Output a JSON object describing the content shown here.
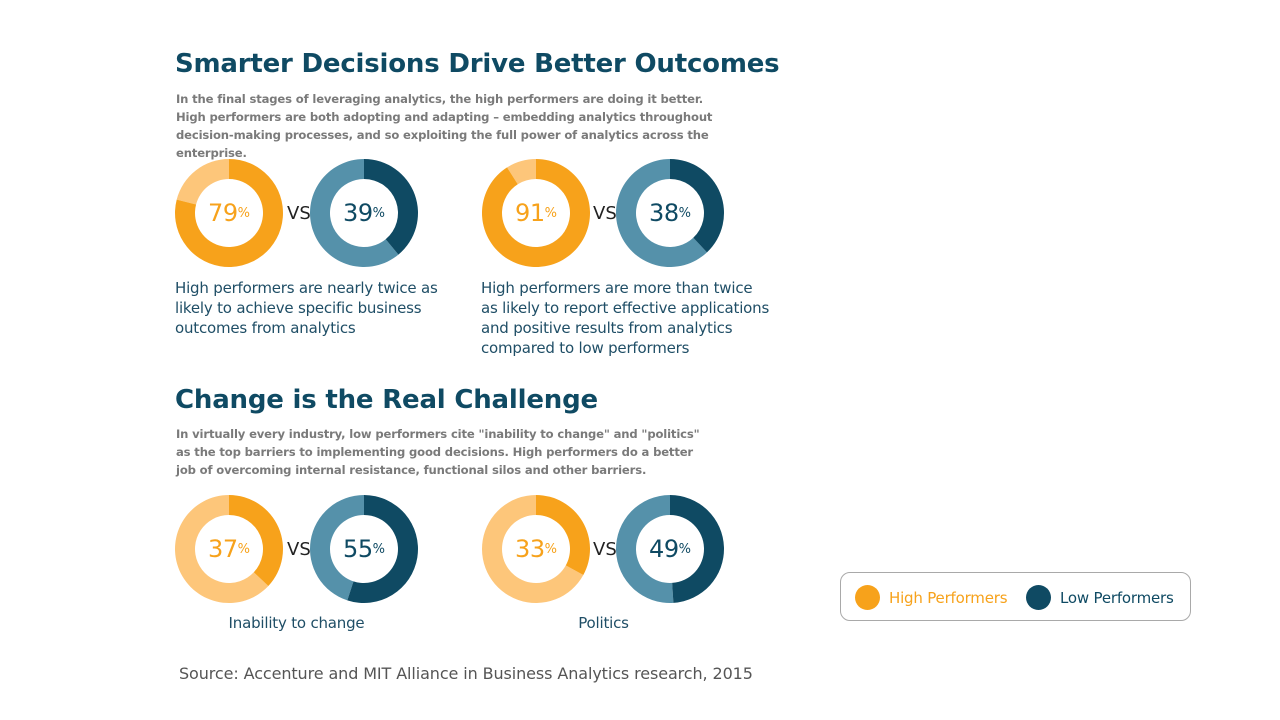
{
  "colors": {
    "high_main": "#f7a21b",
    "high_light": "#fdc67a",
    "low_main": "#0f4a63",
    "low_light": "#5591aa",
    "heading": "#0f4a63",
    "body_gray": "#7a7a7a"
  },
  "section1": {
    "title": "Smarter Decisions Drive Better Outcomes",
    "intro": "In the final stages of leveraging analytics, the high performers are doing it better. High performers are both adopting and adapting – embedding analytics throughout decision-making processes, and so exploiting the full power of analytics across the enterprise."
  },
  "section2": {
    "title": "Change is the Real Challenge",
    "intro": "In virtually every industry, low performers cite \"inability to change\" and \"politics\" as the top barriers to implementing good decisions. High performers do a better job of overcoming internal resistance, functional silos and other barriers."
  },
  "vs_label": "VS",
  "percent_sign": "%",
  "chart_data": [
    {
      "type": "pie",
      "variant": "donut-pair",
      "caption": "High performers are nearly twice as likely to achieve specific business outcomes from analytics",
      "series": [
        {
          "name": "High Performers",
          "value": 79
        },
        {
          "name": "Low Performers",
          "value": 39
        }
      ]
    },
    {
      "type": "pie",
      "variant": "donut-pair",
      "caption": "High performers are more than twice as likely to report effective applications and positive results from analytics compared to low performers",
      "series": [
        {
          "name": "High Performers",
          "value": 91
        },
        {
          "name": "Low Performers",
          "value": 38
        }
      ]
    },
    {
      "type": "pie",
      "variant": "donut-pair",
      "caption": "Inability to change",
      "series": [
        {
          "name": "High Performers",
          "value": 37
        },
        {
          "name": "Low Performers",
          "value": 55
        }
      ]
    },
    {
      "type": "pie",
      "variant": "donut-pair",
      "caption": "Politics",
      "series": [
        {
          "name": "High Performers",
          "value": 33
        },
        {
          "name": "Low Performers",
          "value": 49
        }
      ]
    }
  ],
  "legend": {
    "items": [
      {
        "label": "High Performers",
        "color": "#f7a21b"
      },
      {
        "label": "Low Performers",
        "color": "#0f4a63"
      }
    ]
  },
  "source": "Source: Accenture and MIT Alliance in Business Analytics research, 2015"
}
